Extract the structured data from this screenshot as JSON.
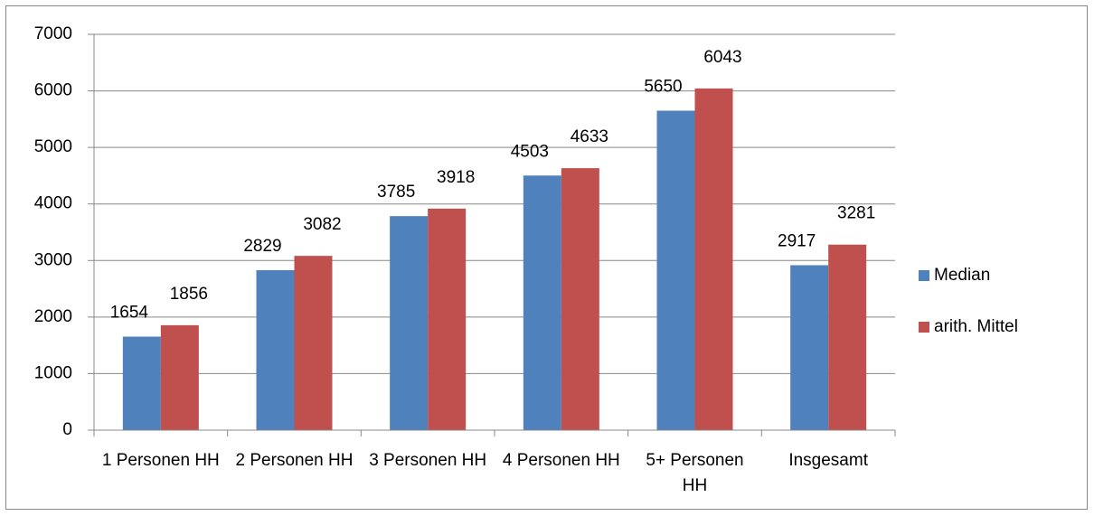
{
  "chart_data": {
    "type": "bar",
    "categories": [
      "1 Personen HH",
      "2 Personen HH",
      "3 Personen HH",
      "4 Personen HH",
      "5+ Personen HH",
      "Insgesamt"
    ],
    "series": [
      {
        "name": "Median",
        "color": "#4f81bd",
        "values": [
          1654,
          2829,
          3785,
          4503,
          5650,
          2917
        ]
      },
      {
        "name": "arith. Mittel",
        "color": "#c0504d",
        "values": [
          1856,
          3082,
          3918,
          4633,
          6043,
          3281
        ]
      }
    ],
    "ylim": [
      0,
      7000
    ],
    "yticks": [
      0,
      1000,
      2000,
      3000,
      4000,
      5000,
      6000,
      7000
    ],
    "grid": true,
    "legend": "right"
  }
}
